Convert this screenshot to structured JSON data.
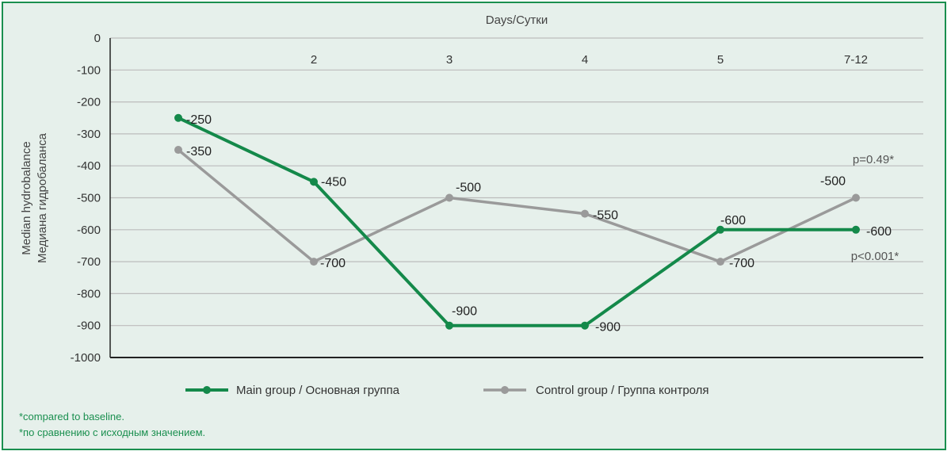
{
  "chart_data": {
    "type": "line",
    "top_axis_title": "Days/Сутки",
    "ylabel_line1": "Median hydrobalance",
    "ylabel_line2": "Медиана гидробаланса",
    "ylim": [
      -1000,
      0
    ],
    "yticks": [
      0,
      -100,
      -200,
      -300,
      -400,
      -500,
      -600,
      -700,
      -800,
      -900,
      -1000
    ],
    "categories": [
      "",
      "2",
      "3",
      "4",
      "5",
      "7-12"
    ],
    "series": [
      {
        "name": "Main group / Основная группа",
        "color": "#14894a",
        "values": [
          -250,
          -450,
          -900,
          -900,
          -600,
          -600
        ]
      },
      {
        "name": "Control group / Группа контроля",
        "color": "#9a9a9a",
        "values": [
          -350,
          -700,
          -500,
          -550,
          -700,
          -500
        ]
      }
    ],
    "annotations": [
      {
        "text": "p=0.49*",
        "series": 1
      },
      {
        "text": "p<0.001*",
        "series": 0
      }
    ],
    "grid": true,
    "legend_position": "bottom"
  },
  "footnotes": [
    "*compared to baseline.",
    "*по сравнению с исходным значением."
  ]
}
